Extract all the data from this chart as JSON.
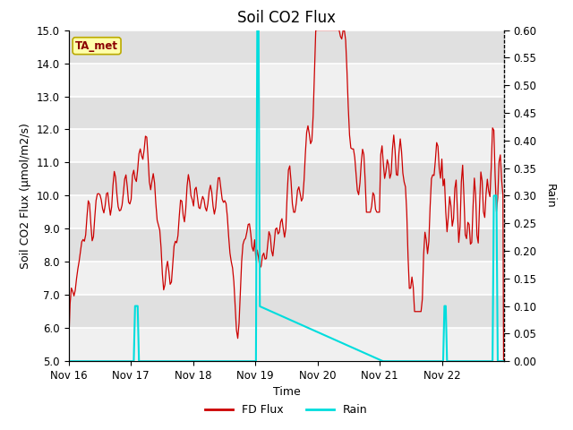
{
  "title": "Soil CO2 Flux",
  "xlabel": "Time",
  "ylabel_left": "Soil CO2 Flux (μmol/m2/s)",
  "ylabel_right": "Rain",
  "ylim_left": [
    5.0,
    15.0
  ],
  "ylim_right": [
    0.0,
    0.6
  ],
  "yticks_left": [
    5.0,
    6.0,
    7.0,
    8.0,
    9.0,
    10.0,
    11.0,
    12.0,
    13.0,
    14.0,
    15.0
  ],
  "yticks_right": [
    0.0,
    0.05,
    0.1,
    0.15,
    0.2,
    0.25,
    0.3,
    0.35,
    0.4,
    0.45,
    0.5,
    0.55,
    0.6
  ],
  "plot_bg_color": "#e8e8e8",
  "flux_color": "#cc0000",
  "rain_color": "#00dddd",
  "ta_met_label": "TA_met",
  "ta_met_bg": "#ffffaa",
  "ta_met_border": "#bbaa00",
  "ta_met_text_color": "#8b0000",
  "legend_labels": [
    "FD Flux",
    "Rain"
  ],
  "xtick_positions": [
    0,
    1,
    2,
    3,
    4,
    5,
    6
  ],
  "xtick_labels": [
    "Nov 16",
    "Nov 17",
    "Nov 18",
    "Nov 19",
    "Nov 20",
    "Nov 21",
    "Nov 22"
  ],
  "xlim": [
    0,
    7
  ]
}
